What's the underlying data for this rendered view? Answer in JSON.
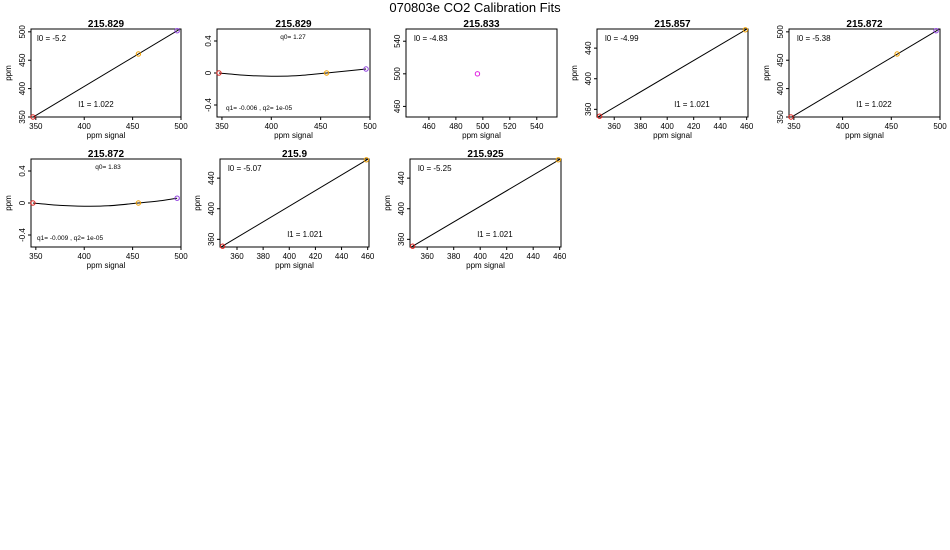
{
  "page": {
    "title": "070803e   CO2 Calibration Fits"
  },
  "chart_data": [
    {
      "type": "scatter",
      "fit": "linear",
      "title": "215.829",
      "xlabel": "ppm signal",
      "ylabel": "ppm",
      "xlim": [
        345,
        500
      ],
      "ylim": [
        350,
        505
      ],
      "xticks": [
        350,
        400,
        450,
        500
      ],
      "yticks": [
        350,
        400,
        450,
        500
      ],
      "points": [
        {
          "x": 347,
          "y": 350,
          "color": "#e0201b"
        },
        {
          "x": 456,
          "y": 461,
          "color": "#f0a000"
        },
        {
          "x": 496,
          "y": 502,
          "color": "#9040e0"
        }
      ],
      "curve": [
        [
          345,
          347.6
        ],
        [
          500,
          506.0
        ]
      ],
      "annotations": [
        "l0 =  -5.2",
        "l1 =  1.022"
      ]
    },
    {
      "type": "scatter",
      "fit": "quadratic",
      "title": "215.829",
      "xlabel": "ppm signal",
      "ylabel": "",
      "xlim": [
        345,
        500
      ],
      "ylim": [
        -0.55,
        0.55
      ],
      "xticks": [
        350,
        400,
        450,
        500
      ],
      "yticks": [
        -0.4,
        0.0,
        0.4
      ],
      "points": [
        {
          "x": 347,
          "y": 0.0,
          "color": "#e0201b"
        },
        {
          "x": 456,
          "y": 0.0,
          "color": "#f0a000"
        },
        {
          "x": 496,
          "y": 0.05,
          "color": "#9040e0"
        }
      ],
      "curve": [
        [
          347,
          0.0
        ],
        [
          375,
          -0.03
        ],
        [
          400,
          -0.04
        ],
        [
          425,
          -0.035
        ],
        [
          456,
          0.0
        ],
        [
          480,
          0.03
        ],
        [
          496,
          0.05
        ]
      ],
      "annotations": [
        "q0= 1.27",
        "q1= -0.006 , q2= 1e-05"
      ]
    },
    {
      "type": "scatter",
      "fit": "none",
      "title": "215.833",
      "xlabel": "ppm signal",
      "ylabel": "",
      "xlim": [
        443,
        555
      ],
      "ylim": [
        447,
        555
      ],
      "xticks": [
        460,
        480,
        500,
        520,
        540
      ],
      "yticks": [
        460,
        500,
        540
      ],
      "points": [
        {
          "x": 496,
          "y": 500,
          "color": "#e020e0"
        }
      ],
      "curve": [],
      "annotations": [
        "l0 =  -4.83"
      ]
    },
    {
      "type": "scatter",
      "fit": "linear",
      "title": "215.857",
      "xlabel": "ppm signal",
      "ylabel": "ppm",
      "xlim": [
        347,
        461
      ],
      "ylim": [
        350,
        465
      ],
      "xticks": [
        360,
        380,
        400,
        420,
        440,
        460
      ],
      "yticks": [
        360,
        400,
        440
      ],
      "points": [
        {
          "x": 349,
          "y": 351,
          "color": "#e0201b"
        },
        {
          "x": 459,
          "y": 464,
          "color": "#f0a000"
        }
      ],
      "curve": [
        [
          347,
          349.3
        ],
        [
          461,
          465.7
        ]
      ],
      "annotations": [
        "l0 =  -4.99",
        "l1 =  1.021"
      ]
    },
    {
      "type": "scatter",
      "fit": "linear",
      "title": "215.872",
      "xlabel": "ppm signal",
      "ylabel": "ppm",
      "xlim": [
        345,
        500
      ],
      "ylim": [
        350,
        505
      ],
      "xticks": [
        350,
        400,
        450,
        500
      ],
      "yticks": [
        350,
        400,
        450,
        500
      ],
      "points": [
        {
          "x": 347,
          "y": 350,
          "color": "#e0201b"
        },
        {
          "x": 456,
          "y": 461,
          "color": "#f0a000"
        },
        {
          "x": 496,
          "y": 502,
          "color": "#9040e0"
        }
      ],
      "curve": [
        [
          345,
          347.2
        ],
        [
          500,
          505.6
        ]
      ],
      "annotations": [
        "l0 =  -5.38",
        "l1 =  1.022"
      ]
    },
    {
      "type": "scatter",
      "fit": "quadratic",
      "title": "215.872",
      "xlabel": "ppm signal",
      "ylabel": "ppm",
      "xlim": [
        345,
        500
      ],
      "ylim": [
        -0.55,
        0.55
      ],
      "xticks": [
        350,
        400,
        450,
        500
      ],
      "yticks": [
        -0.4,
        0.0,
        0.4
      ],
      "points": [
        {
          "x": 347,
          "y": 0.0,
          "color": "#e0201b"
        },
        {
          "x": 456,
          "y": 0.0,
          "color": "#f0a000"
        },
        {
          "x": 496,
          "y": 0.06,
          "color": "#9040e0"
        }
      ],
      "curve": [
        [
          347,
          0.0
        ],
        [
          375,
          -0.03
        ],
        [
          400,
          -0.04
        ],
        [
          425,
          -0.035
        ],
        [
          456,
          0.0
        ],
        [
          480,
          0.03
        ],
        [
          496,
          0.06
        ]
      ],
      "annotations": [
        "q0= 1.83",
        "q1= -0.009 , q2= 1e-05"
      ]
    },
    {
      "type": "scatter",
      "fit": "linear",
      "title": "215.9",
      "xlabel": "ppm signal",
      "ylabel": "ppm",
      "xlim": [
        347,
        461
      ],
      "ylim": [
        350,
        465
      ],
      "xticks": [
        360,
        380,
        400,
        420,
        440,
        460
      ],
      "yticks": [
        360,
        400,
        440
      ],
      "points": [
        {
          "x": 349,
          "y": 351,
          "color": "#e0201b"
        },
        {
          "x": 459,
          "y": 464,
          "color": "#f0a000"
        }
      ],
      "curve": [
        [
          347,
          349.2
        ],
        [
          461,
          465.6
        ]
      ],
      "annotations": [
        "l0 =  -5.07",
        "l1 =  1.021"
      ]
    },
    {
      "type": "scatter",
      "fit": "linear",
      "title": "215.925",
      "xlabel": "ppm signal",
      "ylabel": "ppm",
      "xlim": [
        347,
        461
      ],
      "ylim": [
        350,
        465
      ],
      "xticks": [
        360,
        380,
        400,
        420,
        440,
        460
      ],
      "yticks": [
        360,
        400,
        440
      ],
      "points": [
        {
          "x": 349,
          "y": 351,
          "color": "#e0201b"
        },
        {
          "x": 459,
          "y": 464,
          "color": "#f0a000"
        }
      ],
      "curve": [
        [
          347,
          349.0
        ],
        [
          461,
          465.4
        ]
      ],
      "annotations": [
        "l0 =  -5.25",
        "l1 =  1.021"
      ]
    }
  ]
}
